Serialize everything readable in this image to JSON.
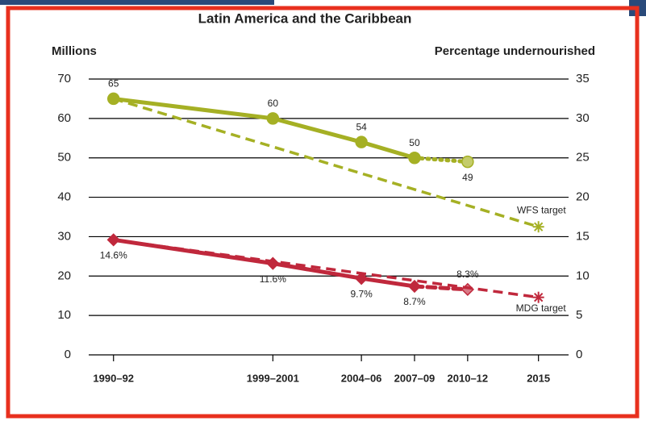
{
  "chart_data": {
    "type": "line",
    "title": "Latin America and the Caribbean",
    "ylabel": "Millions",
    "y2label": "Percentage undernourished",
    "xlim": [
      1989.6,
      2016.7
    ],
    "xticks": [
      {
        "value": 1991,
        "label": "1990–92"
      },
      {
        "value": 2000,
        "label": "1999–2001"
      },
      {
        "value": 2005,
        "label": "2004–06"
      },
      {
        "value": 2008,
        "label": "2007–09"
      },
      {
        "value": 2011,
        "label": "2010–12"
      },
      {
        "value": 2015,
        "label": "2015"
      }
    ],
    "ylim": [
      0,
      70
    ],
    "yticks": [
      0,
      10,
      20,
      30,
      40,
      50,
      60,
      70
    ],
    "y2lim": [
      0,
      35
    ],
    "y2ticks": [
      0,
      5,
      10,
      15,
      20,
      25,
      30,
      35
    ],
    "grid": true,
    "series": [
      {
        "color": "#a5b024",
        "axis": "y",
        "x": [
          1991,
          2000,
          2005,
          2008,
          2011
        ],
        "values": [
          65,
          60,
          54,
          50,
          49
        ],
        "projected": [
          false,
          false,
          false,
          false,
          true
        ]
      },
      {
        "name": "WFS target",
        "color": "#a5b024",
        "axis": "y",
        "x": [
          1991,
          2015
        ],
        "values": [
          65,
          32.5
        ],
        "dashed": true
      },
      {
        "color": "#c0283c",
        "axis": "y2",
        "x": [
          1991,
          2000,
          2005,
          2008,
          2011
        ],
        "values": [
          14.6,
          11.6,
          9.7,
          8.7,
          8.3
        ],
        "value_labels": [
          "14.6%",
          "11.6%",
          "9.7%",
          "8.7%",
          "8.3%"
        ],
        "projected": [
          false,
          false,
          false,
          false,
          true
        ]
      },
      {
        "name": "MDG target",
        "color": "#c0283c",
        "axis": "y2",
        "x": [
          1991,
          2015
        ],
        "values": [
          14.6,
          7.3
        ],
        "dashed": true
      }
    ]
  }
}
